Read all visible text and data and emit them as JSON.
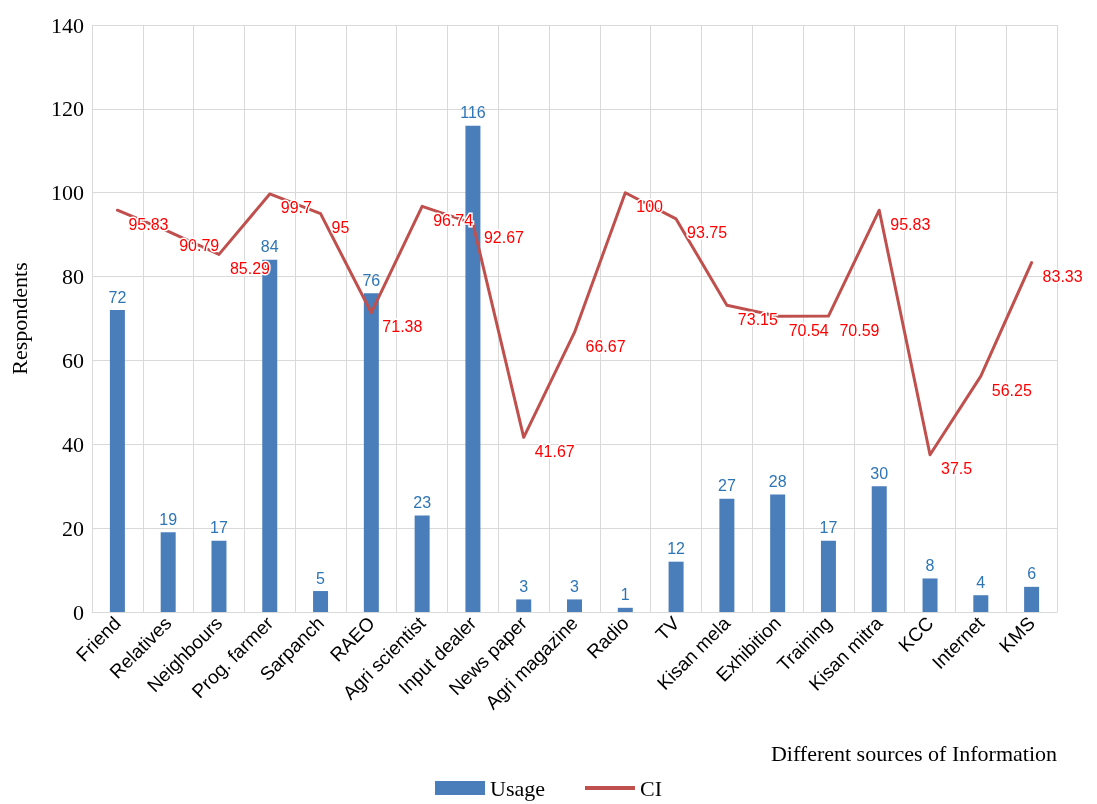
{
  "chart_data": {
    "type": "bar",
    "xlabel": "Different sources of Information",
    "ylabel": "Respondents",
    "categories": [
      "Friend",
      "Relatives",
      "Neighbours",
      "Prog. farmer",
      "Sarpanch",
      "RAEO",
      "Agri scientist",
      "Input dealer",
      "News paper",
      "Agri magazine",
      "Radio",
      "TV",
      "Kisan mela",
      "Exhibition",
      "Training",
      "Kisan mitra",
      "KCC",
      "Internet",
      "KMS"
    ],
    "series": [
      {
        "name": "Usage",
        "color": "#4a7ebb",
        "values": [
          72,
          19,
          17,
          84,
          5,
          76,
          23,
          116,
          3,
          3,
          1,
          12,
          27,
          28,
          17,
          30,
          8,
          4,
          6
        ]
      },
      {
        "name": "CI",
        "type": "line",
        "color": "#c0504d",
        "values": [
          95.83,
          90.79,
          85.29,
          99.7,
          95,
          71.38,
          96.74,
          92.67,
          41.67,
          66.67,
          100,
          93.75,
          73.15,
          70.54,
          70.59,
          95.83,
          37.5,
          56.25,
          83.33
        ]
      }
    ],
    "ylim": [
      0,
      140
    ],
    "yticks": [
      0,
      20,
      40,
      60,
      80,
      100,
      120,
      140
    ],
    "grid": true,
    "legend": "bottom",
    "data_labels": true,
    "marker": "none"
  }
}
